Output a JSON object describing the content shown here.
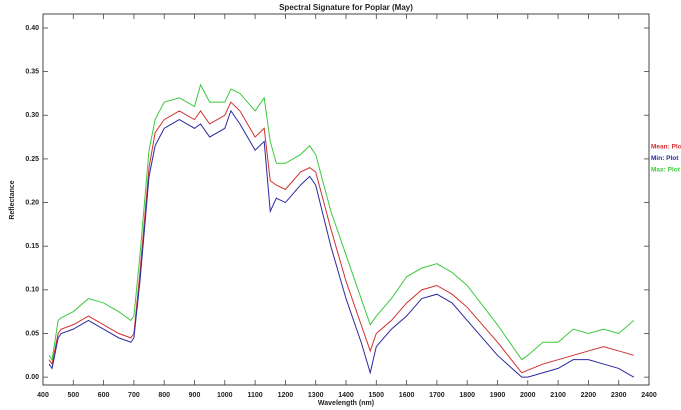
{
  "chart_data": {
    "type": "line",
    "title": "Spectral Signature for Poplar (May)",
    "x_label": "Wavelength (nm)",
    "y_label": "Reflectance",
    "x": [
      420,
      430,
      450,
      460,
      500,
      550,
      600,
      650,
      690,
      700,
      720,
      750,
      770,
      800,
      850,
      900,
      920,
      950,
      1000,
      1020,
      1050,
      1100,
      1130,
      1150,
      1170,
      1200,
      1250,
      1280,
      1300,
      1350,
      1400,
      1450,
      1480,
      1500,
      1550,
      1600,
      1650,
      1700,
      1750,
      1800,
      1900,
      1980,
      2000,
      2050,
      2100,
      2150,
      2200,
      2250,
      2300,
      2350
    ],
    "series": [
      {
        "name": "Mean: Plot",
        "color": "#d03030",
        "values": [
          0.02,
          0.015,
          0.05,
          0.055,
          0.06,
          0.07,
          0.06,
          0.05,
          0.045,
          0.05,
          0.12,
          0.24,
          0.28,
          0.295,
          0.305,
          0.295,
          0.305,
          0.29,
          0.3,
          0.315,
          0.305,
          0.275,
          0.285,
          0.225,
          0.22,
          0.215,
          0.235,
          0.24,
          0.235,
          0.17,
          0.11,
          0.06,
          0.03,
          0.05,
          0.065,
          0.085,
          0.1,
          0.105,
          0.095,
          0.08,
          0.04,
          0.005,
          0.008,
          0.015,
          0.02,
          0.025,
          0.03,
          0.035,
          0.03,
          0.025
        ]
      },
      {
        "name": "Min: Plot",
        "color": "#2a2aa0",
        "values": [
          0.015,
          0.01,
          0.045,
          0.05,
          0.055,
          0.065,
          0.055,
          0.045,
          0.04,
          0.045,
          0.11,
          0.23,
          0.265,
          0.285,
          0.295,
          0.285,
          0.29,
          0.275,
          0.285,
          0.305,
          0.29,
          0.26,
          0.27,
          0.19,
          0.205,
          0.2,
          0.22,
          0.23,
          0.22,
          0.15,
          0.09,
          0.04,
          0.005,
          0.035,
          0.055,
          0.07,
          0.09,
          0.095,
          0.085,
          0.065,
          0.025,
          0.0,
          0.0,
          0.005,
          0.01,
          0.02,
          0.02,
          0.015,
          0.01,
          0.0
        ]
      },
      {
        "name": "Max: Plot",
        "color": "#3ec83e",
        "values": [
          0.025,
          0.02,
          0.065,
          0.068,
          0.075,
          0.09,
          0.085,
          0.075,
          0.065,
          0.07,
          0.14,
          0.26,
          0.295,
          0.315,
          0.32,
          0.31,
          0.335,
          0.315,
          0.315,
          0.33,
          0.325,
          0.305,
          0.32,
          0.27,
          0.245,
          0.245,
          0.255,
          0.265,
          0.255,
          0.19,
          0.14,
          0.09,
          0.06,
          0.07,
          0.09,
          0.115,
          0.125,
          0.13,
          0.12,
          0.105,
          0.06,
          0.02,
          0.025,
          0.04,
          0.04,
          0.055,
          0.05,
          0.055,
          0.05,
          0.065
        ]
      }
    ],
    "xlim": [
      400,
      2400
    ],
    "xticks": [
      400,
      500,
      600,
      700,
      800,
      900,
      1000,
      1100,
      1200,
      1300,
      1400,
      1500,
      1600,
      1700,
      1800,
      1900,
      2000,
      2100,
      2200,
      2300,
      2400
    ],
    "ylim": [
      -0.009,
      0.416
    ],
    "yticks": [
      {
        "value": 0,
        "label": "0.00"
      },
      0.05,
      {
        "value": 0.1,
        "label": "0.10"
      },
      0.15,
      {
        "value": 0.2,
        "label": "0.20"
      },
      0.25,
      {
        "value": 0.3,
        "label": "0.30"
      },
      0.35,
      {
        "value": 0.4,
        "label": "0.40"
      }
    ],
    "grid": false,
    "legend": "right"
  }
}
